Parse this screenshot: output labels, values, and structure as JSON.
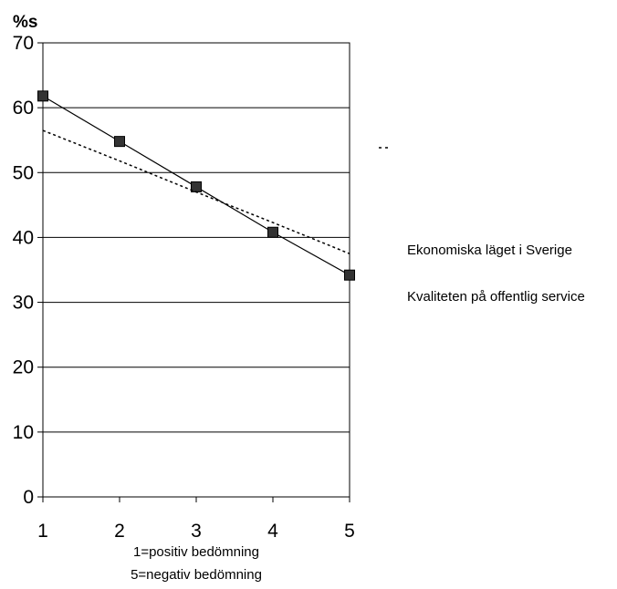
{
  "chart_data": {
    "type": "line",
    "ylabel": "%s",
    "xlabel_lines": [
      "1=positiv bedömning",
      "5=negativ bedömning"
    ],
    "x": [
      1,
      2,
      3,
      4,
      5
    ],
    "xlim": [
      1,
      5
    ],
    "ylim": [
      0,
      70
    ],
    "yticks": [
      0,
      10,
      20,
      30,
      40,
      50,
      60,
      70
    ],
    "xticks": [
      1,
      2,
      3,
      4,
      5
    ],
    "grid": "horizontal",
    "legend_position": "right",
    "series": [
      {
        "name": "Ekonomiska läget i Sverige",
        "values": [
          61.8,
          54.8,
          47.8,
          40.8,
          34.2
        ],
        "style": "solid",
        "marker": "square",
        "color": "#000000"
      },
      {
        "name": "Kvaliteten på offentlig service",
        "values": [
          56.5,
          51.8,
          47.0,
          42.3,
          37.5
        ],
        "style": "dotted",
        "marker": "none",
        "color": "#000000"
      }
    ]
  }
}
